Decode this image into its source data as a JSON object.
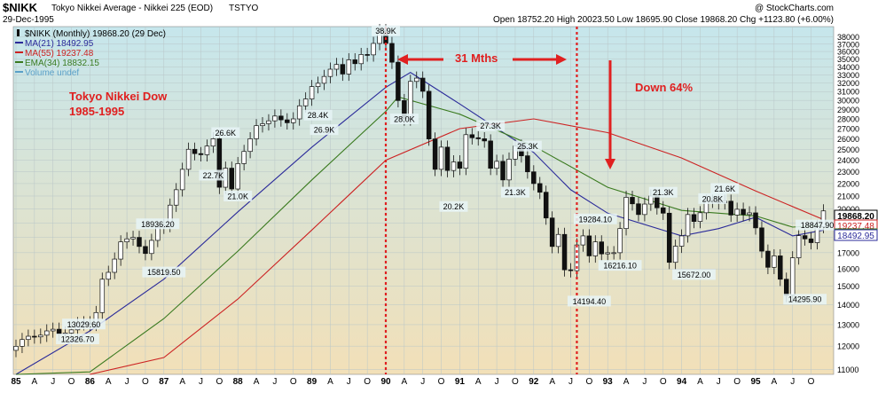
{
  "header": {
    "symbol": "$NIKK",
    "name": "Tokyo Nikkei Average - Nikkei 225 (EOD)",
    "exchange": "TSTYO",
    "date": "29-Dec-1995",
    "watermark": "@ StockCharts.com",
    "ohlc": "Open 18752.20  High 20023.50  Low 18695.90  Close 19868.20  Chg +1123.80 (+6.00%)"
  },
  "legend": [
    {
      "text": "$NIKK (Monthly) 19868.20 (29 Dec)",
      "color": "#000000",
      "icon": "candle-icon"
    },
    {
      "text": "MA(21) 18492.95",
      "color": "#2b2b9a",
      "icon": "line-icon"
    },
    {
      "text": "MA(55) 19237.48",
      "color": "#cc2222",
      "icon": "line-icon"
    },
    {
      "text": "EMA(34) 18832.15",
      "color": "#3a7a1f",
      "icon": "line-icon"
    },
    {
      "text": "Volume undef",
      "color": "#5aa0c8",
      "icon": "line-icon"
    }
  ],
  "annotations": {
    "title1": "Tokyo Nikkei Dow",
    "title2": "1985-1995",
    "months": "31 Mths",
    "down": "Down 64%"
  },
  "colors": {
    "accent": "#e02020",
    "ma21": "#2b2b9a",
    "ma55": "#cc2222",
    "ema34": "#3a7a1f",
    "candle": "#111111"
  },
  "chart_data": {
    "type": "candlestick",
    "scale": "log",
    "ylim": [
      10800,
      39500
    ],
    "y_ticks": [
      11000,
      12000,
      13000,
      14000,
      15000,
      16000,
      17000,
      18000,
      19000,
      20000,
      21000,
      22000,
      23000,
      24000,
      25000,
      26000,
      27000,
      28000,
      29000,
      30000,
      31000,
      32000,
      33000,
      34000,
      35000,
      36000,
      37000,
      38000
    ],
    "x_tick_labels": [
      {
        "month": 0,
        "label": "85",
        "bold": true
      },
      {
        "month": 3,
        "label": "A"
      },
      {
        "month": 6,
        "label": "J"
      },
      {
        "month": 9,
        "label": "O"
      },
      {
        "month": 12,
        "label": "86",
        "bold": true
      },
      {
        "month": 15,
        "label": "A"
      },
      {
        "month": 18,
        "label": "J"
      },
      {
        "month": 21,
        "label": "O"
      },
      {
        "month": 24,
        "label": "87",
        "bold": true
      },
      {
        "month": 27,
        "label": "A"
      },
      {
        "month": 30,
        "label": "J"
      },
      {
        "month": 33,
        "label": "O"
      },
      {
        "month": 36,
        "label": "88",
        "bold": true
      },
      {
        "month": 39,
        "label": "A"
      },
      {
        "month": 42,
        "label": "J"
      },
      {
        "month": 45,
        "label": "O"
      },
      {
        "month": 48,
        "label": "89",
        "bold": true
      },
      {
        "month": 51,
        "label": "A"
      },
      {
        "month": 54,
        "label": "J"
      },
      {
        "month": 57,
        "label": "O"
      },
      {
        "month": 60,
        "label": "90",
        "bold": true
      },
      {
        "month": 63,
        "label": "A"
      },
      {
        "month": 66,
        "label": "J"
      },
      {
        "month": 69,
        "label": "O"
      },
      {
        "month": 72,
        "label": "91",
        "bold": true
      },
      {
        "month": 75,
        "label": "A"
      },
      {
        "month": 78,
        "label": "J"
      },
      {
        "month": 81,
        "label": "O"
      },
      {
        "month": 84,
        "label": "92",
        "bold": true
      },
      {
        "month": 87,
        "label": "A"
      },
      {
        "month": 90,
        "label": "J"
      },
      {
        "month": 93,
        "label": "O"
      },
      {
        "month": 96,
        "label": "93",
        "bold": true
      },
      {
        "month": 99,
        "label": "A"
      },
      {
        "month": 102,
        "label": "J"
      },
      {
        "month": 105,
        "label": "O"
      },
      {
        "month": 108,
        "label": "94",
        "bold": true
      },
      {
        "month": 111,
        "label": "A"
      },
      {
        "month": 114,
        "label": "J"
      },
      {
        "month": 117,
        "label": "O"
      },
      {
        "month": 120,
        "label": "95",
        "bold": true
      },
      {
        "month": 123,
        "label": "A"
      },
      {
        "month": 126,
        "label": "J"
      },
      {
        "month": 129,
        "label": "O"
      }
    ],
    "closes": [
      11992,
      12300,
      12450,
      12420,
      12500,
      12700,
      12780,
      12550,
      12600,
      12750,
      13050,
      13090,
      13020,
      13600,
      15400,
      15800,
      16600,
      17700,
      17900,
      18000,
      17400,
      16950,
      17800,
      18700,
      18820,
      20300,
      21500,
      23200,
      25000,
      24600,
      24500,
      25300,
      26000,
      21700,
      23300,
      21560,
      23700,
      24800,
      26000,
      27300,
      27500,
      27800,
      28300,
      27900,
      27600,
      28000,
      29400,
      30159,
      31580,
      31980,
      32800,
      33700,
      34300,
      33100,
      34900,
      34400,
      35600,
      35550,
      37100,
      38916,
      37100,
      34590,
      29980,
      28000,
      32200,
      32600,
      31036,
      25980,
      23200,
      25200,
      23100,
      23849,
      23290,
      26400,
      26100,
      26000,
      25790,
      23290,
      23900,
      22300,
      24100,
      25300,
      24400,
      22984,
      22000,
      21300,
      19350,
      17400,
      18200,
      15950,
      15900,
      17500,
      18100,
      16800,
      17700,
      16925,
      17000,
      17000,
      18600,
      20900,
      20400,
      19600,
      20380,
      21000,
      20100,
      19700,
      16400,
      17417,
      18100,
      19600,
      19100,
      19730,
      20600,
      20600,
      20480,
      20600,
      19563,
      19990,
      19600,
      19723,
      18650,
      17100,
      16100,
      16800,
      15400,
      14500,
      16680,
      18118,
      17900,
      17650,
      18744,
      19868
    ],
    "moving_averages": [
      {
        "name": "MA(21)",
        "points": [
          [
            0,
            10200
          ],
          [
            12,
            12700
          ],
          [
            24,
            15400
          ],
          [
            36,
            19800
          ],
          [
            48,
            25200
          ],
          [
            60,
            31500
          ],
          [
            64,
            33300
          ],
          [
            72,
            29600
          ],
          [
            84,
            24700
          ],
          [
            90,
            21500
          ],
          [
            96,
            19700
          ],
          [
            108,
            18100
          ],
          [
            114,
            18600
          ],
          [
            120,
            19400
          ],
          [
            126,
            18100
          ],
          [
            131,
            18493
          ]
        ]
      },
      {
        "name": "MA(55)",
        "points": [
          [
            0,
            8500
          ],
          [
            12,
            9800
          ],
          [
            24,
            11500
          ],
          [
            36,
            14300
          ],
          [
            48,
            18500
          ],
          [
            60,
            24000
          ],
          [
            72,
            27000
          ],
          [
            84,
            28000
          ],
          [
            96,
            26600
          ],
          [
            108,
            24200
          ],
          [
            120,
            21400
          ],
          [
            131,
            19237
          ]
        ]
      },
      {
        "name": "EMA(34)",
        "points": [
          [
            0,
            9500
          ],
          [
            12,
            10900
          ],
          [
            24,
            13300
          ],
          [
            36,
            17100
          ],
          [
            48,
            22300
          ],
          [
            60,
            28800
          ],
          [
            62,
            30400
          ],
          [
            72,
            28500
          ],
          [
            84,
            25300
          ],
          [
            96,
            21700
          ],
          [
            108,
            19900
          ],
          [
            120,
            19500
          ],
          [
            126,
            18700
          ],
          [
            131,
            18832
          ]
        ]
      }
    ],
    "labels": [
      {
        "text": "13029.60",
        "month": 11,
        "value": 13029.6
      },
      {
        "text": "12326.70",
        "month": 10,
        "value": 12326.7
      },
      {
        "text": "18936.20",
        "month": 23,
        "value": 18936.2
      },
      {
        "text": "15819.50",
        "month": 24,
        "value": 15819.5
      },
      {
        "text": "26.6K",
        "month": 34,
        "value": 26600
      },
      {
        "text": "22.7K",
        "month": 32,
        "value": 22700
      },
      {
        "text": "21.0K",
        "month": 36,
        "value": 21000
      },
      {
        "text": "28.4K",
        "month": 49,
        "value": 28400
      },
      {
        "text": "26.9K",
        "month": 50,
        "value": 26900
      },
      {
        "text": "38.9K",
        "month": 60,
        "value": 38900
      },
      {
        "text": "28.0K",
        "month": 63,
        "value": 28000
      },
      {
        "text": "20.2K",
        "month": 71,
        "value": 20200
      },
      {
        "text": "27.3K",
        "month": 77,
        "value": 27300
      },
      {
        "text": "25.3K",
        "month": 83,
        "value": 25300
      },
      {
        "text": "21.3K",
        "month": 81,
        "value": 21300
      },
      {
        "text": "19284.10",
        "month": 94,
        "value": 19284.1
      },
      {
        "text": "16216.10",
        "month": 98,
        "value": 16216.1
      },
      {
        "text": "14194.40",
        "month": 93,
        "value": 14194.4
      },
      {
        "text": "21.3K",
        "month": 105,
        "value": 21300
      },
      {
        "text": "15672.00",
        "month": 110,
        "value": 15672
      },
      {
        "text": "20.8K",
        "month": 113,
        "value": 20800
      },
      {
        "text": "21.6K",
        "month": 115,
        "value": 21600
      },
      {
        "text": "18847.90",
        "month": 130,
        "value": 18847.9
      },
      {
        "text": "14295.90",
        "month": 128,
        "value": 14295.9
      }
    ],
    "right_badges": [
      {
        "text": "19868.20",
        "value": 19868.2,
        "style": "close"
      },
      {
        "text": "19237.48",
        "value": 19237.48,
        "style": "ma55"
      },
      {
        "text": "18832.15",
        "value": 18832.15,
        "style": "ema34"
      },
      {
        "text": "18492.95",
        "value": 18492.95,
        "style": "ma21"
      }
    ],
    "vlines": [
      {
        "month": 60
      },
      {
        "month": 91
      }
    ]
  }
}
